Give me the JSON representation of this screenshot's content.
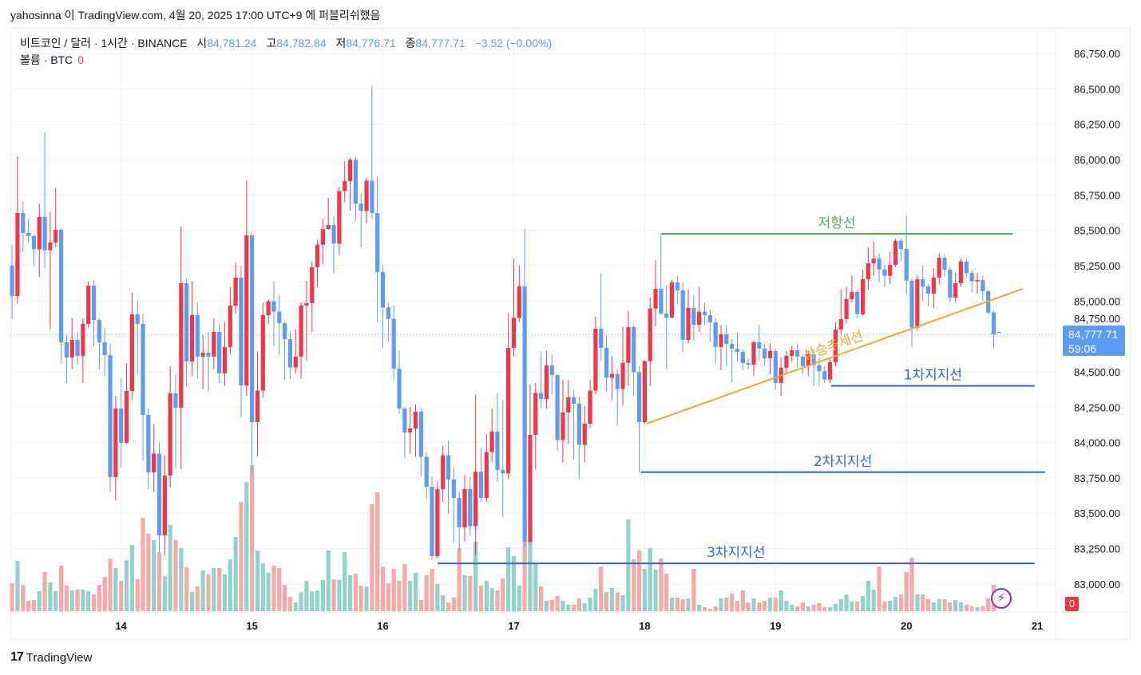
{
  "publisher_line": "yahosinna 이 TradingView.com, 4월 20, 2025 17:00 UTC+9 에 퍼블리쉬했음",
  "legend": {
    "symbol": "비트코인 / 달러 · 1시간 · BINANCE",
    "open_label": "시",
    "open": "84,781.24",
    "high_label": "고",
    "high": "84,782.84",
    "low_label": "저",
    "low": "84,776.71",
    "close_label": "종",
    "close": "84,777.71",
    "change": "−3.52 (−0.00%)",
    "volume_label": "볼륨 · BTC",
    "volume": "0"
  },
  "price_tag": {
    "price": "84,777.71",
    "countdown": "59:06"
  },
  "volume_tag": "0",
  "logo_text": "TradingView",
  "icons": {
    "alert": "lightning-bolt-icon",
    "logo": "tradingview-logo-icon"
  },
  "colors": {
    "up_candle": "#f23645",
    "down_candle": "#5b9cf6",
    "up_volume": "#92d2cc",
    "down_volume": "#f7a9a7",
    "resistance": "#4caf50",
    "trend": "#f5a623",
    "support": "#2962ff",
    "grid": "#f0f3fa"
  },
  "chart_data": {
    "type": "candlestick",
    "interval": "1시간",
    "y_ticks": [
      "86,750.00",
      "86,500.00",
      "86,250.00",
      "86,000.00",
      "85,750.00",
      "85,500.00",
      "85,250.00",
      "85,000.00",
      "84,750.00",
      "84,500.00",
      "84,250.00",
      "84,000.00",
      "83,750.00",
      "83,500.00",
      "83,250.00",
      "83,000.00"
    ],
    "y_tick_values": [
      86750,
      86500,
      86250,
      86000,
      85750,
      85500,
      85250,
      85000,
      84750,
      84500,
      84250,
      84000,
      83750,
      83500,
      83250,
      83000
    ],
    "x_ticks": [
      {
        "label": "14",
        "candle": 20
      },
      {
        "label": "15",
        "candle": 44
      },
      {
        "label": "16",
        "candle": 68
      },
      {
        "label": "17",
        "candle": 92
      },
      {
        "label": "18",
        "candle": 116
      },
      {
        "label": "19",
        "candle": 140
      },
      {
        "label": "20",
        "candle": 164
      },
      {
        "label": "21",
        "candle": 188
      }
    ],
    "grid": true,
    "current_price": 84777.71,
    "candles_ohlc": [
      [
        85250,
        85400,
        84870,
        85035
      ],
      [
        85035,
        86024,
        84980,
        85622
      ],
      [
        85622,
        85700,
        85350,
        85481
      ],
      [
        85481,
        85580,
        85420,
        85459
      ],
      [
        85459,
        85470,
        85250,
        85365
      ],
      [
        85365,
        85690,
        85170,
        85594
      ],
      [
        85594,
        86192,
        85230,
        85359
      ],
      [
        85359,
        85630,
        84800,
        85413
      ],
      [
        85413,
        85800,
        85380,
        85504
      ],
      [
        85504,
        85510,
        84560,
        84708
      ],
      [
        84708,
        84760,
        84420,
        84601
      ],
      [
        84601,
        84880,
        84520,
        84725
      ],
      [
        84725,
        84780,
        84550,
        84612
      ],
      [
        84612,
        84880,
        84420,
        84838
      ],
      [
        84838,
        85140,
        84810,
        85109
      ],
      [
        85109,
        85150,
        84680,
        84866
      ],
      [
        84866,
        84880,
        84520,
        84708
      ],
      [
        84708,
        84810,
        84470,
        84618
      ],
      [
        84618,
        84700,
        83650,
        83755
      ],
      [
        83755,
        84330,
        83590,
        84240
      ],
      [
        84240,
        84450,
        83822,
        83998
      ],
      [
        83998,
        84560,
        83990,
        84364
      ],
      [
        84364,
        85060,
        84300,
        84906
      ],
      [
        84906,
        85000,
        84480,
        84838
      ],
      [
        84838,
        84910,
        83870,
        84195
      ],
      [
        84195,
        84240,
        83670,
        83789
      ],
      [
        83789,
        84130,
        83650,
        83921
      ],
      [
        83921,
        84000,
        83220,
        83344
      ],
      [
        83344,
        83910,
        83200,
        83766
      ],
      [
        83766,
        84540,
        83680,
        84347
      ],
      [
        84347,
        84480,
        83820,
        84246
      ],
      [
        84246,
        85526,
        83810,
        85126
      ],
      [
        85126,
        85160,
        84390,
        84573
      ],
      [
        84573,
        85140,
        84470,
        84900
      ],
      [
        84900,
        84990,
        84450,
        84607
      ],
      [
        84607,
        84760,
        84380,
        84635
      ],
      [
        84635,
        84780,
        84360,
        84607
      ],
      [
        84607,
        84880,
        84520,
        84782
      ],
      [
        84782,
        84840,
        84420,
        84488
      ],
      [
        84488,
        84850,
        84400,
        84675
      ],
      [
        84675,
        85100,
        84620,
        84968
      ],
      [
        84968,
        85270,
        84910,
        85165
      ],
      [
        85165,
        85250,
        84180,
        84404
      ],
      [
        84404,
        85850,
        84330,
        85464
      ],
      [
        85464,
        85480,
        83766,
        84144
      ],
      [
        84144,
        84640,
        83900,
        84367
      ],
      [
        84367,
        84990,
        84320,
        84900
      ],
      [
        84900,
        85010,
        84840,
        84998
      ],
      [
        84998,
        85140,
        84680,
        84925
      ],
      [
        84925,
        85040,
        84620,
        84844
      ],
      [
        84844,
        84850,
        84440,
        84731
      ],
      [
        84731,
        84790,
        84450,
        84530
      ],
      [
        84530,
        84800,
        84490,
        84607
      ],
      [
        84607,
        84990,
        84450,
        84969
      ],
      [
        84969,
        85140,
        84580,
        84985
      ],
      [
        84985,
        85280,
        84780,
        85239
      ],
      [
        85239,
        85430,
        85100,
        85398
      ],
      [
        85398,
        85580,
        85260,
        85509
      ],
      [
        85509,
        85730,
        85500,
        85537
      ],
      [
        85537,
        85600,
        85200,
        85405
      ],
      [
        85405,
        85810,
        85320,
        85777
      ],
      [
        85777,
        85990,
        85700,
        85848
      ],
      [
        85848,
        86010,
        85640,
        85998
      ],
      [
        85998,
        86020,
        85560,
        85688
      ],
      [
        85688,
        85760,
        85380,
        85637
      ],
      [
        85637,
        85870,
        85550,
        85850
      ],
      [
        85850,
        86524,
        85580,
        85622
      ],
      [
        85622,
        85880,
        84850,
        85205
      ],
      [
        85205,
        85250,
        84670,
        84954
      ],
      [
        84954,
        84990,
        84710,
        84874
      ],
      [
        84874,
        84970,
        84440,
        84522
      ],
      [
        84522,
        84650,
        84200,
        84240
      ],
      [
        84240,
        84250,
        83890,
        84071
      ],
      [
        84071,
        84250,
        83920,
        84099
      ],
      [
        84099,
        84270,
        83900,
        84218
      ],
      [
        84218,
        84240,
        83760,
        83899
      ],
      [
        83899,
        83930,
        83600,
        83687
      ],
      [
        83687,
        83760,
        83170,
        83197
      ],
      [
        83197,
        83720,
        83180,
        83671
      ],
      [
        83671,
        83980,
        83580,
        83910
      ],
      [
        83910,
        84010,
        83500,
        83738
      ],
      [
        83738,
        83820,
        83290,
        83608
      ],
      [
        83608,
        83650,
        83230,
        83400
      ],
      [
        83400,
        83770,
        83300,
        83671
      ],
      [
        83671,
        83760,
        83340,
        83408
      ],
      [
        83408,
        84340,
        83200,
        83793
      ],
      [
        83793,
        83960,
        83580,
        83608
      ],
      [
        83608,
        84060,
        83580,
        83932
      ],
      [
        83932,
        84240,
        83860,
        84076
      ],
      [
        84076,
        84350,
        83720,
        83806
      ],
      [
        83806,
        84300,
        83470,
        83781
      ],
      [
        83781,
        84910,
        83740,
        84669
      ],
      [
        84669,
        85300,
        84610,
        84881
      ],
      [
        84881,
        85250,
        84850,
        85104
      ],
      [
        85104,
        85511,
        83260,
        83298
      ],
      [
        83298,
        84410,
        83280,
        84054
      ],
      [
        84054,
        84420,
        83810,
        84350
      ],
      [
        84350,
        84640,
        84240,
        84308
      ],
      [
        84308,
        84650,
        84240,
        84545
      ],
      [
        84545,
        84620,
        84340,
        84477
      ],
      [
        84477,
        84480,
        83940,
        84017
      ],
      [
        84017,
        84440,
        83860,
        84212
      ],
      [
        84212,
        84440,
        83990,
        84319
      ],
      [
        84319,
        84370,
        83880,
        84274
      ],
      [
        84274,
        84320,
        83740,
        83984
      ],
      [
        83984,
        84260,
        83860,
        84133
      ],
      [
        84133,
        84440,
        84100,
        84367
      ],
      [
        84367,
        84890,
        84340,
        84804
      ],
      [
        84804,
        85200,
        84580,
        84669
      ],
      [
        84669,
        84760,
        84360,
        84457
      ],
      [
        84457,
        84610,
        84300,
        84485
      ],
      [
        84485,
        84520,
        84120,
        84378
      ],
      [
        84378,
        84820,
        84260,
        84563
      ],
      [
        84563,
        84930,
        84400,
        84815
      ],
      [
        84815,
        84830,
        84330,
        84497
      ],
      [
        84497,
        84540,
        83789,
        84144
      ],
      [
        84144,
        84580,
        84130,
        84575
      ],
      [
        84575,
        85030,
        84400,
        84947
      ],
      [
        84947,
        85290,
        84820,
        85086
      ],
      [
        85086,
        85475,
        84900,
        84911
      ],
      [
        84911,
        85110,
        84520,
        84883
      ],
      [
        84883,
        85150,
        84880,
        85131
      ],
      [
        85131,
        85180,
        84980,
        85075
      ],
      [
        85075,
        85130,
        84640,
        84725
      ],
      [
        84725,
        85080,
        84700,
        84951
      ],
      [
        84951,
        85040,
        84720,
        84832
      ],
      [
        84832,
        85100,
        84780,
        84924
      ],
      [
        84924,
        84990,
        84830,
        84900
      ],
      [
        84900,
        84940,
        84710,
        84849
      ],
      [
        84849,
        84880,
        84560,
        84675
      ],
      [
        84675,
        84830,
        84510,
        84765
      ],
      [
        84765,
        84830,
        84540,
        84697
      ],
      [
        84697,
        84730,
        84430,
        84663
      ],
      [
        84663,
        84780,
        84570,
        84640
      ],
      [
        84640,
        84660,
        84510,
        84562
      ],
      [
        84562,
        84590,
        84520,
        84550
      ],
      [
        84550,
        84720,
        84470,
        84708
      ],
      [
        84708,
        84830,
        84580,
        84665
      ],
      [
        84665,
        84700,
        84540,
        84595
      ],
      [
        84595,
        84700,
        84480,
        84646
      ],
      [
        84646,
        84660,
        84370,
        84421
      ],
      [
        84421,
        84600,
        84330,
        84528
      ],
      [
        84528,
        84650,
        84480,
        84612
      ],
      [
        84612,
        84680,
        84570,
        84652
      ],
      [
        84652,
        84700,
        84530,
        84607
      ],
      [
        84607,
        84620,
        84480,
        84539
      ],
      [
        84539,
        84650,
        84470,
        84623
      ],
      [
        84623,
        84650,
        84400,
        84546
      ],
      [
        84546,
        84600,
        84400,
        84505
      ],
      [
        84505,
        84540,
        84420,
        84445
      ],
      [
        84445,
        84590,
        84420,
        84567
      ],
      [
        84567,
        84850,
        84540,
        84798
      ],
      [
        84798,
        85080,
        84760,
        84872
      ],
      [
        84872,
        85100,
        84840,
        85013
      ],
      [
        85013,
        85180,
        84990,
        85064
      ],
      [
        85064,
        85080,
        84880,
        84906
      ],
      [
        84906,
        85220,
        84900,
        85154
      ],
      [
        85154,
        85380,
        85080,
        85267
      ],
      [
        85267,
        85420,
        85180,
        85300
      ],
      [
        85300,
        85340,
        85130,
        85223
      ],
      [
        85223,
        85260,
        85100,
        85178
      ],
      [
        85178,
        85350,
        85120,
        85255
      ],
      [
        85255,
        85440,
        85240,
        85425
      ],
      [
        85425,
        85440,
        85280,
        85368
      ],
      [
        85368,
        85605,
        85050,
        85144
      ],
      [
        85144,
        85160,
        84675,
        84812
      ],
      [
        84812,
        85180,
        84790,
        85154
      ],
      [
        85154,
        85250,
        85000,
        85103
      ],
      [
        85103,
        85120,
        84960,
        85052
      ],
      [
        85052,
        85230,
        84950,
        85165
      ],
      [
        85165,
        85340,
        85120,
        85306
      ],
      [
        85306,
        85330,
        85170,
        85222
      ],
      [
        85222,
        85240,
        84990,
        85024
      ],
      [
        85024,
        85200,
        84990,
        85126
      ],
      [
        85126,
        85300,
        85100,
        85280
      ],
      [
        85280,
        85300,
        85170,
        85199
      ],
      [
        85199,
        85220,
        85060,
        85139
      ],
      [
        85139,
        85200,
        85050,
        85148
      ],
      [
        85148,
        85180,
        85000,
        85069
      ],
      [
        85069,
        85080,
        84900,
        84919
      ],
      [
        84919,
        84930,
        84665,
        84764
      ],
      [
        84781.24,
        84782.84,
        84776.71,
        84777.71
      ]
    ],
    "volume_relative": [
      35,
      63,
      33,
      13,
      14,
      25,
      49,
      36,
      25,
      57,
      32,
      26,
      27,
      27,
      25,
      21,
      33,
      43,
      66,
      54,
      38,
      64,
      83,
      40,
      117,
      97,
      89,
      74,
      44,
      108,
      89,
      79,
      55,
      24,
      31,
      51,
      46,
      54,
      54,
      46,
      65,
      93,
      137,
      162,
      183,
      76,
      60,
      48,
      57,
      54,
      33,
      18,
      11,
      24,
      38,
      25,
      26,
      39,
      76,
      40,
      39,
      74,
      45,
      47,
      32,
      31,
      134,
      149,
      56,
      35,
      53,
      38,
      59,
      38,
      48,
      14,
      45,
      53,
      34,
      20,
      11,
      17,
      79,
      45,
      44,
      87,
      32,
      38,
      29,
      26,
      41,
      80,
      69,
      32,
      120,
      87,
      60,
      31,
      13,
      14,
      19,
      13,
      8,
      8,
      16,
      10,
      17,
      28,
      56,
      24,
      29,
      23,
      20,
      115,
      65,
      76,
      53,
      79,
      52,
      66,
      47,
      17,
      17,
      15,
      16,
      53,
      8,
      5,
      3,
      6,
      16,
      17,
      22,
      13,
      26,
      11,
      16,
      11,
      13,
      17,
      17,
      26,
      13,
      8,
      6,
      11,
      6,
      8,
      10,
      5,
      5,
      9,
      15,
      21,
      12,
      12,
      19,
      38,
      27,
      56,
      12,
      13,
      18,
      21,
      49,
      67,
      21,
      21,
      15,
      11,
      15,
      15,
      11,
      14,
      11,
      8,
      6,
      5,
      6,
      16,
      33,
      0
    ],
    "drawings": [
      {
        "kind": "horizontal",
        "label": "저항선",
        "price": 85475,
        "from_candle": 119,
        "to_candle": 183.5,
        "color": "#4caf50"
      },
      {
        "kind": "trend",
        "label": "상승추세선",
        "from_candle": 116.4,
        "from_price": 84133,
        "to_candle": 185.3,
        "to_price": 85086,
        "color": "#f5a623"
      },
      {
        "kind": "horizontal",
        "label": "1차지지선",
        "price": 84400,
        "from_candle": 150.2,
        "to_candle": 187.5,
        "color": "#2962ff"
      },
      {
        "kind": "horizontal",
        "label": "2차지지선",
        "price": 83790,
        "from_candle": 115.3,
        "to_candle": 189.4,
        "color": "#2962ff"
      },
      {
        "kind": "horizontal",
        "label": "3차지지선",
        "price": 83145,
        "from_candle": 78,
        "to_candle": 187.5,
        "color": "#2962ff"
      }
    ]
  }
}
